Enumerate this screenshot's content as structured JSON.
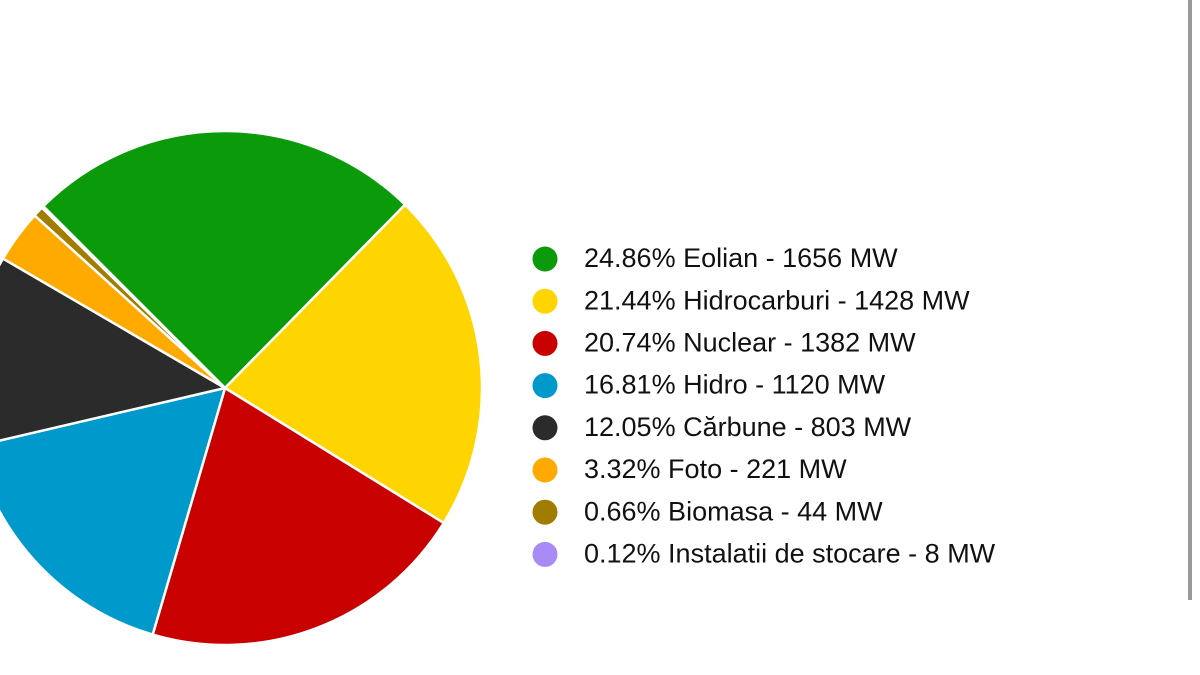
{
  "chart_data": {
    "type": "pie",
    "categories": [
      "24.86% Eolian - 1656 MW",
      "21.44% Hidrocarburi - 1428 MW",
      "20.74% Nuclear - 1382 MW",
      "16.81% Hidro - 1120 MW",
      "12.05% Cărbune - 803 MW",
      "3.32% Foto - 221 MW",
      "0.66% Biomasa - 44 MW",
      "0.12% Instalatii de stocare - 8 MW"
    ],
    "values": [
      24.86,
      21.44,
      20.74,
      16.81,
      12.05,
      3.32,
      0.66,
      0.12
    ],
    "colors": [
      "#0a9a0a",
      "#ffd500",
      "#c80000",
      "#0099cc",
      "#2b2b2b",
      "#ffaa00",
      "#a07c00",
      "#a98bf5"
    ],
    "legend": "right"
  }
}
